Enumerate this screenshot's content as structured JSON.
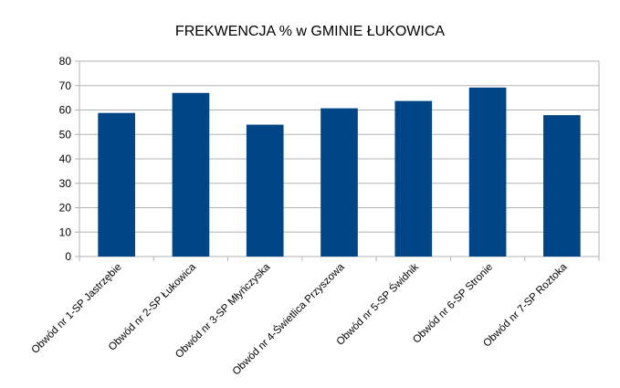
{
  "chart_data": {
    "type": "bar",
    "title": "FREKWENCJA % w GMINIE ŁUKOWICA",
    "xlabel": "",
    "ylabel": "",
    "categories": [
      "Obwód nr 1-SP Jastrzębie",
      "Obwód nr 2-SP Łukowica",
      "Obwód nr 3-SP Młyńczyska",
      "Obwód nr 4-Świetlica Przyszowa",
      "Obwód nr 5-SP Świdnik",
      "Obwód nr 6-SP Stronie",
      "Obwód nr 7-SP Roztoka"
    ],
    "values": [
      58.8,
      67,
      54,
      60.7,
      63.7,
      69.2,
      57.9
    ],
    "ylim": [
      0,
      80
    ],
    "yticks": [
      "0",
      "10",
      "20",
      "30",
      "40",
      "50",
      "60",
      "70",
      "80"
    ],
    "grid": true,
    "legend": "none",
    "bar_color": "#004586",
    "grid_color": "#b3b3b3"
  }
}
